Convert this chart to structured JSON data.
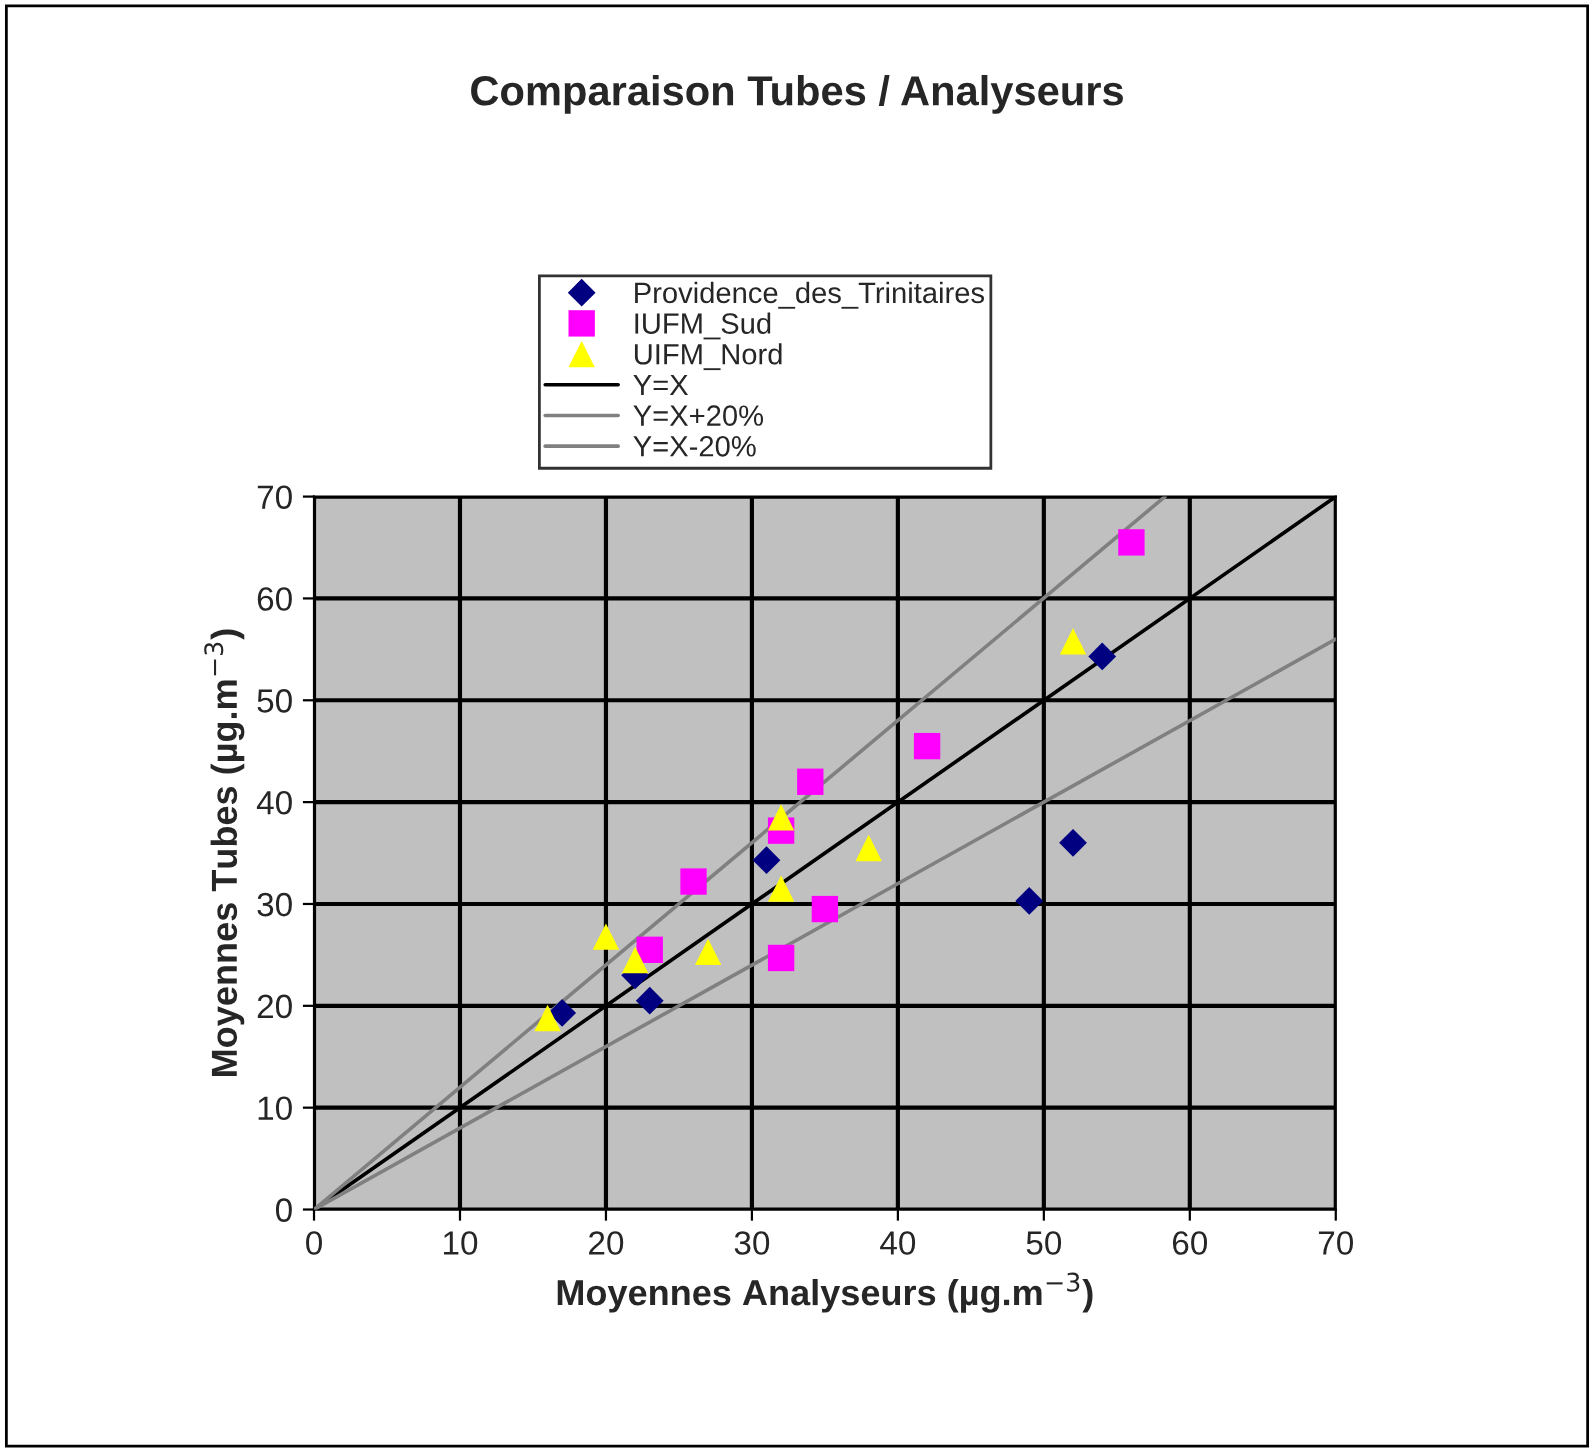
{
  "chart_data": {
    "type": "scatter",
    "title": "Comparaison Tubes / Analyseurs",
    "xlabel": "Moyennes Analyseurs (µg.m$^{−3}$)",
    "ylabel": "Moyennes Tubes (µg.m$^{−3}$)",
    "xlim": [
      0,
      70
    ],
    "ylim": [
      0,
      70
    ],
    "xticks": [
      0,
      10,
      20,
      30,
      40,
      50,
      60,
      70
    ],
    "yticks": [
      0,
      10,
      20,
      30,
      40,
      50,
      60,
      70
    ],
    "grid": true,
    "legend": "top",
    "series": [
      {
        "name": "Providence_des_Trinitaires",
        "color": "#000080",
        "marker": "diamond",
        "x": [
          17,
          22,
          23,
          31,
          49,
          52,
          54
        ],
        "values": [
          19.3,
          23,
          20.5,
          34.3,
          30.3,
          36,
          54.3
        ]
      },
      {
        "name": "IUFM_Sud",
        "color": "#ff00ff",
        "marker": "square",
        "x": [
          23,
          26,
          32,
          32,
          34,
          35,
          42,
          56
        ],
        "values": [
          25.5,
          32.2,
          37.2,
          24.7,
          42,
          29.5,
          45.5,
          65.5
        ]
      },
      {
        "name": "UIFM_Nord",
        "color": "#ffff00",
        "marker": "triangle",
        "x": [
          16,
          20,
          22,
          27,
          32,
          32,
          38,
          52
        ],
        "values": [
          18.8,
          26.8,
          24.5,
          25.3,
          38.5,
          31.5,
          35.5,
          55.8
        ]
      },
      {
        "name": "Y=X",
        "type": "line",
        "color": "#000000",
        "marker": "none",
        "x": [
          0,
          70
        ],
        "values": [
          0,
          70
        ]
      },
      {
        "name": "Y=X+20%",
        "type": "line",
        "color": "#808080",
        "marker": "none",
        "x": [
          0,
          58.3
        ],
        "values": [
          0,
          70
        ]
      },
      {
        "name": "Y=X-20%",
        "type": "line",
        "color": "#808080",
        "marker": "none",
        "x": [
          0,
          70
        ],
        "values": [
          0,
          56
        ]
      }
    ]
  }
}
